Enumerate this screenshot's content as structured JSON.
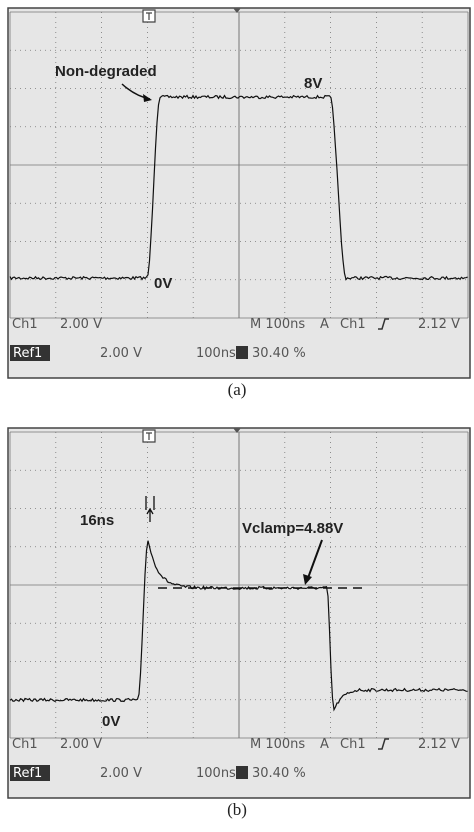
{
  "panels": [
    {
      "annotations": {
        "label": "Non-degraded",
        "high": "8V",
        "low": "0V"
      },
      "status": {
        "ch": "Ch1",
        "ch_scale": "2.00 V",
        "time": "M 100ns",
        "mode": "A",
        "trig_ch": "Ch1",
        "trig_level": "2.12 V",
        "ref": "Ref1",
        "ref_scale": "2.00 V",
        "ref_time": "100ns",
        "trig_pos": "30.40 %"
      },
      "caption": "(a)"
    },
    {
      "annotations": {
        "label": "16ns",
        "high": "Vclamp=4.88V",
        "low": "0V"
      },
      "status": {
        "ch": "Ch1",
        "ch_scale": "2.00 V",
        "time": "M 100ns",
        "mode": "A",
        "trig_ch": "Ch1",
        "trig_level": "2.12 V",
        "ref": "Ref1",
        "ref_scale": "2.00 V",
        "ref_time": "100ns",
        "trig_pos": "30.40 %"
      },
      "caption": "(b)"
    }
  ]
}
